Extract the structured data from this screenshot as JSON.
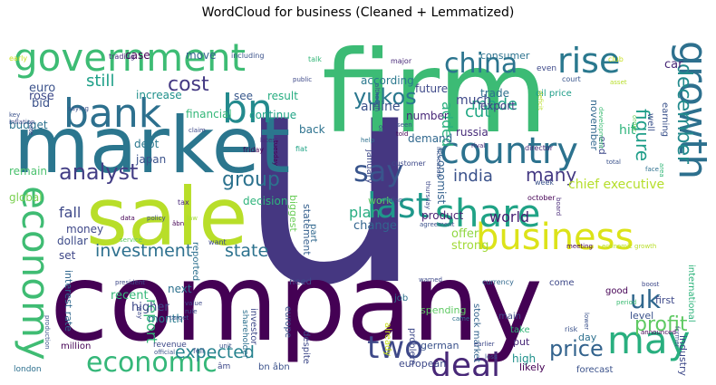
{
  "chart_data": {
    "type": "wordcloud",
    "title": "WordCloud for business (Cleaned + Lemmatized)",
    "background": "#ffffff",
    "colormap": "viridis",
    "words": [
      {
        "text": "u",
        "weight": 300,
        "color": "#453781"
      },
      {
        "text": "company",
        "weight": 140,
        "color": "#440154"
      },
      {
        "text": "firm",
        "weight": 115,
        "color": "#3cbb75"
      },
      {
        "text": "market",
        "weight": 100,
        "color": "#2b768e"
      },
      {
        "text": "sale",
        "weight": 95,
        "color": "#b8de29"
      },
      {
        "text": "government",
        "weight": 52,
        "color": "#3dbc74"
      },
      {
        "text": "bank",
        "weight": 50,
        "color": "#2d708e"
      },
      {
        "text": "business",
        "weight": 48,
        "color": "#dce319"
      },
      {
        "text": "country",
        "weight": 46,
        "color": "#2c728e"
      },
      {
        "text": "share",
        "weight": 44,
        "color": "#20a386"
      },
      {
        "text": "last",
        "weight": 42,
        "color": "#1f988b"
      },
      {
        "text": "bn",
        "weight": 40,
        "color": "#238a8d"
      },
      {
        "text": "growth",
        "weight": 40,
        "color": "#2d708e"
      },
      {
        "text": "economy",
        "weight": 38,
        "color": "#3fbc73"
      },
      {
        "text": "may",
        "weight": 37,
        "color": "#29af7f"
      },
      {
        "text": "rise",
        "weight": 35,
        "color": "#2a788e"
      },
      {
        "text": "china",
        "weight": 30,
        "color": "#2b748e"
      },
      {
        "text": "deal",
        "weight": 33,
        "color": "#482878"
      },
      {
        "text": "say",
        "weight": 30,
        "color": "#39558c"
      },
      {
        "text": "uk",
        "weight": 29,
        "color": "#31688e"
      },
      {
        "text": "two",
        "weight": 29,
        "color": "#3e4989"
      },
      {
        "text": "economic",
        "weight": 27,
        "color": "#35b779"
      },
      {
        "text": "analyst",
        "weight": 25,
        "color": "#433e85"
      },
      {
        "text": "group",
        "weight": 23,
        "color": "#2c728e"
      },
      {
        "text": "cost",
        "weight": 19,
        "color": "#443983"
      },
      {
        "text": "yukos",
        "weight": 20,
        "color": "#2a778e"
      },
      {
        "text": "price",
        "weight": 22,
        "color": "#33638d"
      },
      {
        "text": "profit",
        "weight": 20,
        "color": "#5ec962"
      },
      {
        "text": "december",
        "weight": 20,
        "color": "#238a8d"
      },
      {
        "text": "figure",
        "weight": 18,
        "color": "#1f9e89"
      },
      {
        "text": "investment",
        "weight": 17,
        "color": "#2d708e"
      },
      {
        "text": "state",
        "weight": 17,
        "color": "#2c728e"
      },
      {
        "text": "expected",
        "weight": 17,
        "color": "#26828e"
      },
      {
        "text": "india",
        "weight": 17,
        "color": "#3b528b"
      },
      {
        "text": "many",
        "weight": 17,
        "color": "#443983"
      },
      {
        "text": "still",
        "weight": 16,
        "color": "#1fa088"
      },
      {
        "text": "made",
        "weight": 16,
        "color": "#20a486"
      },
      {
        "text": "cut",
        "weight": 16,
        "color": "#22a884"
      },
      {
        "text": "plan",
        "weight": 15,
        "color": "#27ad81"
      },
      {
        "text": "world",
        "weight": 15,
        "color": "#482173"
      },
      {
        "text": "fall",
        "weight": 14,
        "color": "#3e4989"
      },
      {
        "text": "report",
        "weight": 14,
        "color": "#35b779"
      },
      {
        "text": "added",
        "weight": 14,
        "color": "#2ab07f"
      },
      {
        "text": "chief executive",
        "weight": 13,
        "color": "#b5de2b"
      },
      {
        "text": "hit",
        "weight": 12,
        "color": "#2fb47c"
      },
      {
        "text": "oil price",
        "weight": 9,
        "color": "#1f9e89"
      },
      {
        "text": "economist",
        "weight": 11,
        "color": "#34618d"
      },
      {
        "text": "russia",
        "weight": 11,
        "color": "#472c7a"
      },
      {
        "text": "dollar",
        "weight": 11,
        "color": "#3e4c8a"
      },
      {
        "text": "money",
        "weight": 10,
        "color": "#3f4889"
      },
      {
        "text": "biggest",
        "weight": 10,
        "color": "#6ccd5a"
      },
      {
        "text": "statement",
        "weight": 10,
        "color": "#355f8d"
      },
      {
        "text": "part",
        "weight": 9,
        "color": "#31688e"
      },
      {
        "text": "change",
        "weight": 11,
        "color": "#32658e"
      },
      {
        "text": "offer",
        "weight": 11,
        "color": "#90d743"
      },
      {
        "text": "strong",
        "weight": 11,
        "color": "#a2da37"
      },
      {
        "text": "product",
        "weight": 11,
        "color": "#481f70"
      },
      {
        "text": "month",
        "weight": 11,
        "color": "#297a8e"
      },
      {
        "text": "higher",
        "weight": 12,
        "color": "#3e4989"
      },
      {
        "text": "recent",
        "weight": 12,
        "color": "#35b779"
      },
      {
        "text": "next",
        "weight": 11,
        "color": "#2d718e"
      },
      {
        "text": "set",
        "weight": 11,
        "color": "#3f4788"
      },
      {
        "text": "global",
        "weight": 11,
        "color": "#7ad151"
      },
      {
        "text": "remain",
        "weight": 11,
        "color": "#4ac16d"
      },
      {
        "text": "japan",
        "weight": 11,
        "color": "#3b528b"
      },
      {
        "text": "debt",
        "weight": 11,
        "color": "#2a788e"
      },
      {
        "text": "back",
        "weight": 11,
        "color": "#2c728e"
      },
      {
        "text": "result",
        "weight": 11,
        "color": "#27ad81"
      },
      {
        "text": "increase",
        "weight": 11,
        "color": "#21918c"
      },
      {
        "text": "see",
        "weight": 11,
        "color": "#38588c"
      },
      {
        "text": "move",
        "weight": 11,
        "color": "#33638d"
      },
      {
        "text": "case",
        "weight": 11,
        "color": "#440154"
      },
      {
        "text": "euro",
        "weight": 12,
        "color": "#3b528b"
      },
      {
        "text": "bid",
        "weight": 12,
        "color": "#3b528b"
      },
      {
        "text": "rose",
        "weight": 12,
        "color": "#3e4989"
      },
      {
        "text": "budget",
        "weight": 11,
        "color": "#2c728e"
      },
      {
        "text": "financial",
        "weight": 10,
        "color": "#35b779"
      },
      {
        "text": "continue",
        "weight": 10,
        "color": "#20a486"
      },
      {
        "text": "according",
        "weight": 11,
        "color": "#2a788e"
      },
      {
        "text": "airline",
        "weight": 12,
        "color": "#3b528b"
      },
      {
        "text": "future",
        "weight": 11,
        "color": "#3e4989"
      },
      {
        "text": "much",
        "weight": 12,
        "color": "#3e4989"
      },
      {
        "text": "trade",
        "weight": 11,
        "color": "#2d708e"
      },
      {
        "text": "export",
        "weight": 11,
        "color": "#433e85"
      },
      {
        "text": "number",
        "weight": 11,
        "color": "#482878"
      },
      {
        "text": "demand",
        "weight": 11,
        "color": "#31688e"
      },
      {
        "text": "november",
        "weight": 10,
        "color": "#31688e"
      },
      {
        "text": "end",
        "weight": 10,
        "color": "#3e4989"
      },
      {
        "text": "work",
        "weight": 10,
        "color": "#5ec962"
      },
      {
        "text": "decision",
        "weight": 11,
        "color": "#2fb47c"
      },
      {
        "text": "consumer",
        "weight": 10,
        "color": "#2c728e"
      },
      {
        "text": "even",
        "weight": 8,
        "color": "#3e4989"
      },
      {
        "text": "car",
        "weight": 12,
        "color": "#482878"
      },
      {
        "text": "club",
        "weight": 7,
        "color": "#c8e020"
      },
      {
        "text": "major",
        "weight": 7,
        "color": "#482878"
      },
      {
        "text": "talk",
        "weight": 7,
        "color": "#35b779"
      },
      {
        "text": "early",
        "weight": 6,
        "color": "#c8e020"
      },
      {
        "text": "trading",
        "weight": 7,
        "color": "#472c7a"
      },
      {
        "text": "including",
        "weight": 8,
        "color": "#3b528b"
      },
      {
        "text": "public",
        "weight": 6,
        "color": "#3e4989"
      },
      {
        "text": "although",
        "weight": 6,
        "color": "#3b528b"
      },
      {
        "text": "court",
        "weight": 7,
        "color": "#39558c"
      },
      {
        "text": "asset",
        "weight": 6,
        "color": "#b8de29"
      },
      {
        "text": "order",
        "weight": 6,
        "color": "#6ccd5a"
      },
      {
        "text": "key",
        "weight": 6,
        "color": "#3b528b"
      },
      {
        "text": "inflation",
        "weight": 6,
        "color": "#3e4989"
      },
      {
        "text": "saying",
        "weight": 6,
        "color": "#3b528b"
      },
      {
        "text": "claim",
        "weight": 6,
        "color": "#3e4989"
      },
      {
        "text": "latest",
        "weight": 6,
        "color": "#472c7a"
      },
      {
        "text": "deficit",
        "weight": 6,
        "color": "#b8de29"
      },
      {
        "text": "director",
        "weight": 7,
        "color": "#482878"
      },
      {
        "text": "development",
        "weight": 6,
        "color": "#3dbc74"
      },
      {
        "text": "earning",
        "weight": 9,
        "color": "#3b528b"
      },
      {
        "text": "well",
        "weight": 9,
        "color": "#3b528b"
      },
      {
        "text": "tuesday",
        "weight": 6,
        "color": "#440154"
      },
      {
        "text": "friday",
        "weight": 7,
        "color": "#440154"
      },
      {
        "text": "fiat",
        "weight": 7,
        "color": "#20a486"
      },
      {
        "text": "customer",
        "weight": 7,
        "color": "#3e4989"
      },
      {
        "text": "rival",
        "weight": 6,
        "color": "#482878"
      },
      {
        "text": "total",
        "weight": 6,
        "color": "#3b528b"
      },
      {
        "text": "face",
        "weight": 6,
        "color": "#2d708e"
      },
      {
        "text": "area",
        "weight": 6,
        "color": "#35b779"
      },
      {
        "text": "tax",
        "weight": 7,
        "color": "#482878"
      },
      {
        "text": "law",
        "weight": 6,
        "color": "#a2da37"
      },
      {
        "text": "week",
        "weight": 7,
        "color": "#3b528b"
      },
      {
        "text": "october",
        "weight": 7,
        "color": "#440154"
      },
      {
        "text": "international",
        "weight": 9,
        "color": "#2fb47c"
      },
      {
        "text": "data",
        "weight": 6,
        "color": "#440154"
      },
      {
        "text": "policy",
        "weight": 6,
        "color": "#3e4989"
      },
      {
        "text": "âbn",
        "weight": 6,
        "color": "#440154"
      },
      {
        "text": "service",
        "weight": 6,
        "color": "#5ec962"
      },
      {
        "text": "want",
        "weight": 7,
        "color": "#3e4989"
      },
      {
        "text": "agreement",
        "weight": 6,
        "color": "#3b528b"
      },
      {
        "text": "meeting",
        "weight": 6,
        "color": "#440154"
      },
      {
        "text": "economic growth",
        "weight": 6,
        "color": "#b8de29"
      },
      {
        "text": "need",
        "weight": 9,
        "color": "#3e4989"
      },
      {
        "text": "warned",
        "weight": 6,
        "color": "#3e4989"
      },
      {
        "text": "currency",
        "weight": 7,
        "color": "#31688e"
      },
      {
        "text": "come",
        "weight": 9,
        "color": "#3e4989"
      },
      {
        "text": "good",
        "weight": 9,
        "color": "#440154"
      },
      {
        "text": "boost",
        "weight": 6,
        "color": "#3e4989"
      },
      {
        "text": "first",
        "weight": 10,
        "color": "#3e4989"
      },
      {
        "text": "period",
        "weight": 6,
        "color": "#3dbc74"
      },
      {
        "text": "industry",
        "weight": 10,
        "color": "#3e4989"
      },
      {
        "text": "level",
        "weight": 11,
        "color": "#3b528b"
      },
      {
        "text": "job",
        "weight": 9,
        "color": "#2c728e"
      },
      {
        "text": "stock market",
        "weight": 9,
        "color": "#33638d"
      },
      {
        "text": "main",
        "weight": 10,
        "color": "#3e4989"
      },
      {
        "text": "take",
        "weight": 10,
        "color": "#35b779"
      },
      {
        "text": "put",
        "weight": 10,
        "color": "#482878"
      },
      {
        "text": "spending",
        "weight": 10,
        "color": "#5ec962"
      },
      {
        "text": "problem",
        "weight": 9,
        "color": "#3e4989"
      },
      {
        "text": "already",
        "weight": 9,
        "color": "#c8e020"
      },
      {
        "text": "came",
        "weight": 6,
        "color": "#2d708e"
      },
      {
        "text": "lower",
        "weight": 6,
        "color": "#3b528b"
      },
      {
        "text": "risk",
        "weight": 7,
        "color": "#3b528b"
      },
      {
        "text": "former",
        "weight": 6,
        "color": "#3b528b"
      },
      {
        "text": "announced",
        "weight": 6,
        "color": "#440154"
      },
      {
        "text": "day",
        "weight": 9,
        "color": "#2d708e"
      },
      {
        "text": "high",
        "weight": 10,
        "color": "#21918c"
      },
      {
        "text": "german",
        "weight": 9,
        "color": "#3b528b"
      },
      {
        "text": "earlier",
        "weight": 6,
        "color": "#3e4989"
      },
      {
        "text": "loss",
        "weight": 6,
        "color": "#3b528b"
      },
      {
        "text": "likely",
        "weight": 9,
        "color": "#440154"
      },
      {
        "text": "european",
        "weight": 9,
        "color": "#3e4989"
      },
      {
        "text": "forecast",
        "weight": 8,
        "color": "#3b528b"
      },
      {
        "text": "despite",
        "weight": 9,
        "color": "#3e4989"
      },
      {
        "text": "europe",
        "weight": 9,
        "color": "#3b528b"
      },
      {
        "text": "investor",
        "weight": 9,
        "color": "#3e4989"
      },
      {
        "text": "shareholder",
        "weight": 7,
        "color": "#2d708e"
      },
      {
        "text": "president",
        "weight": 6,
        "color": "#3e4989"
      },
      {
        "text": "value",
        "weight": 6,
        "color": "#3e4989"
      },
      {
        "text": "rule",
        "weight": 6,
        "color": "#3b528b"
      },
      {
        "text": "target",
        "weight": 6,
        "color": "#3b528b"
      },
      {
        "text": "revenue",
        "weight": 7,
        "color": "#3e4989"
      },
      {
        "text": "official",
        "weight": 6,
        "color": "#3b528b"
      },
      {
        "text": "fell",
        "weight": 6,
        "color": "#3b528b"
      },
      {
        "text": "unit",
        "weight": 6,
        "color": "#3b528b"
      },
      {
        "text": "âm",
        "weight": 7,
        "color": "#3e4989"
      },
      {
        "text": "bn âbn",
        "weight": 8,
        "color": "#3b528b"
      },
      {
        "text": "million",
        "weight": 8,
        "color": "#440154"
      },
      {
        "text": "london",
        "weight": 7,
        "color": "#2d708e"
      },
      {
        "text": "production",
        "weight": 6,
        "color": "#3b528b"
      },
      {
        "text": "interest rate",
        "weight": 9,
        "color": "#31688e"
      },
      {
        "text": "rate",
        "weight": 6,
        "color": "#3e4989"
      },
      {
        "text": "help",
        "weight": 6,
        "color": "#2d708e"
      },
      {
        "text": "told",
        "weight": 6,
        "color": "#440154"
      },
      {
        "text": "seen",
        "weight": 6,
        "color": "#3b528b"
      },
      {
        "text": "january",
        "weight": 8,
        "color": "#3e4989"
      },
      {
        "text": "thursday",
        "weight": 6,
        "color": "#3e4989"
      },
      {
        "text": "increased",
        "weight": 6,
        "color": "#3b528b"
      },
      {
        "text": "indian",
        "weight": 6,
        "color": "#3b528b"
      },
      {
        "text": "reported",
        "weight": 8,
        "color": "#2d708e"
      },
      {
        "text": "way",
        "weight": 6,
        "color": "#3e4989"
      },
      {
        "text": "oil",
        "weight": 6,
        "color": "#3e4989"
      },
      {
        "text": "board",
        "weight": 6,
        "color": "#482878"
      }
    ]
  }
}
